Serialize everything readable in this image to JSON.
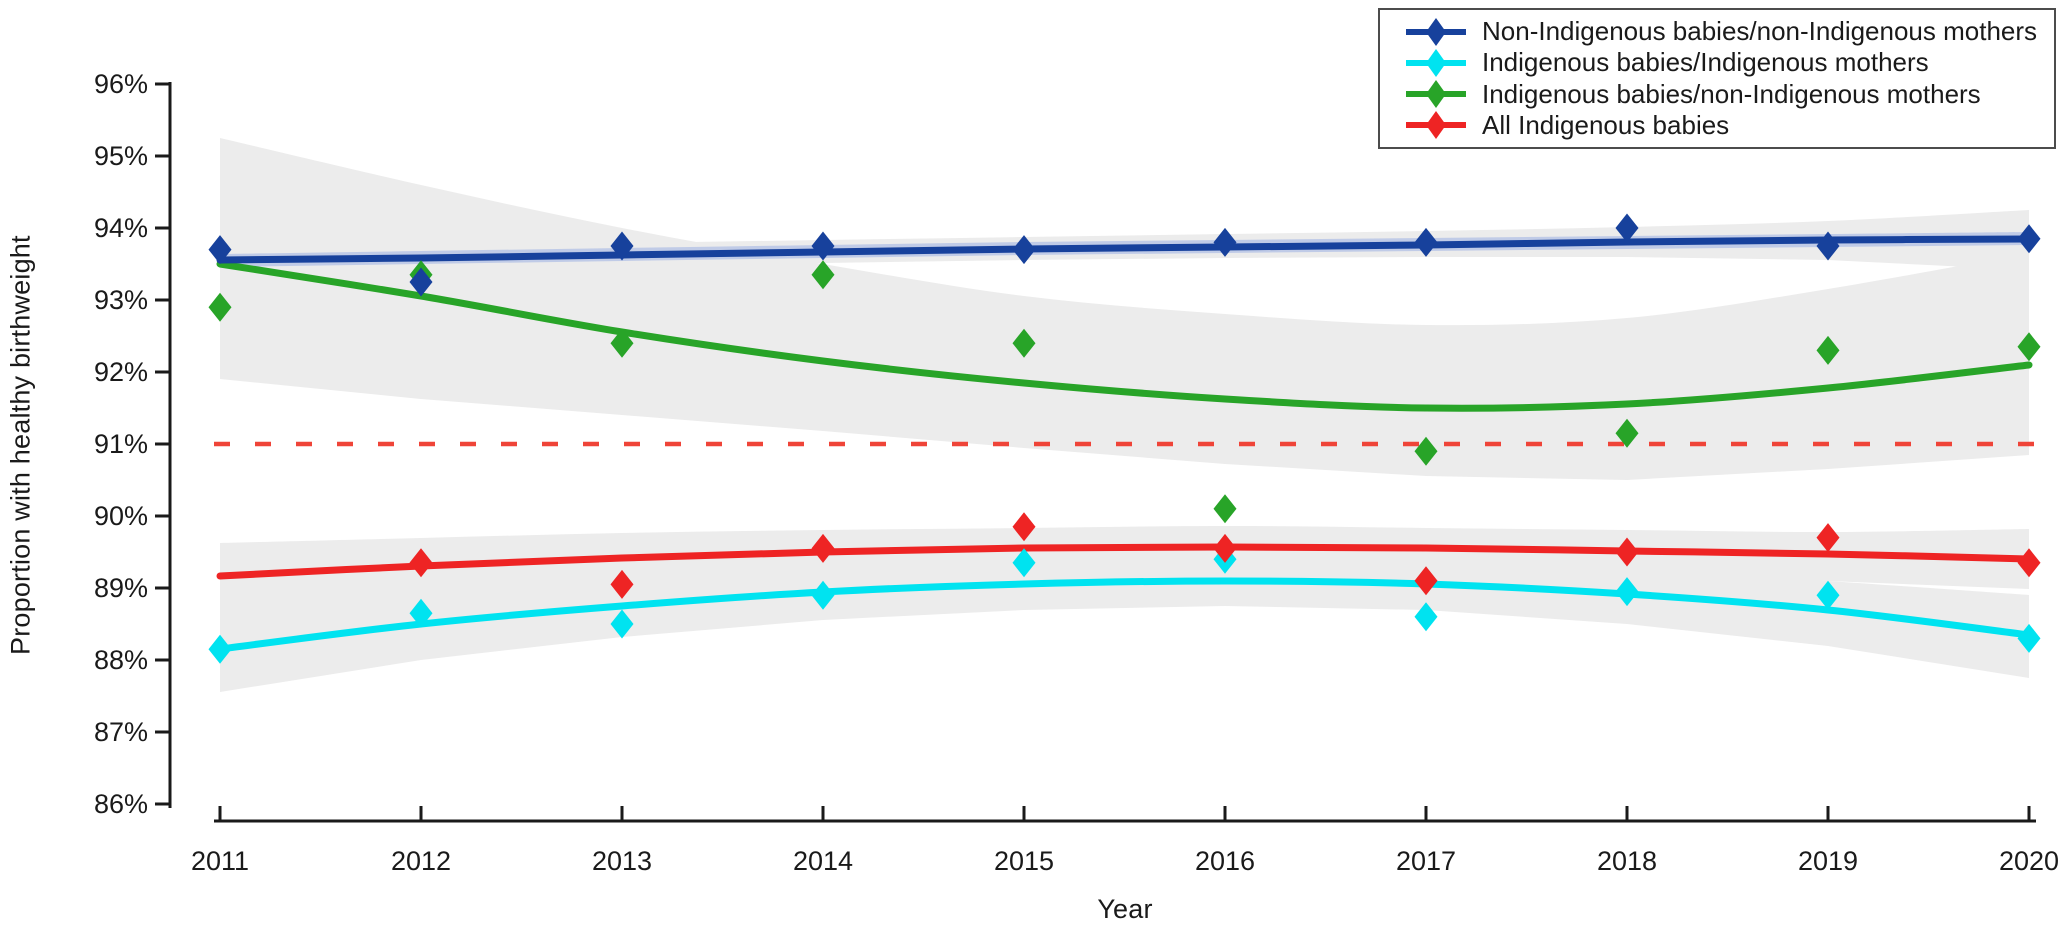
{
  "chart_data": {
    "type": "line",
    "title": "",
    "xlabel": "Year",
    "ylabel": "Proportion with healthy birthweight",
    "x": [
      2011,
      2012,
      2013,
      2014,
      2015,
      2016,
      2017,
      2018,
      2019,
      2020
    ],
    "ylim": [
      86,
      96
    ],
    "ytick_labels": [
      "96%",
      "95%",
      "94%",
      "93%",
      "92%",
      "91%",
      "90%",
      "89%",
      "88%",
      "87%",
      "86%"
    ],
    "ytick_values": [
      96,
      95,
      94,
      93,
      92,
      91,
      90,
      89,
      88,
      87,
      86
    ],
    "grid": false,
    "legend_position": "top-right",
    "reference_line": {
      "value": 91,
      "style": "dashed",
      "color": "#ef4438"
    },
    "band_color": "#ececec",
    "series": [
      {
        "name": "Non-Indigenous babies/non-Indigenous mothers",
        "color": "#17419c",
        "halo_color": "#b9c6e6",
        "points": [
          93.7,
          93.25,
          93.75,
          93.75,
          93.7,
          93.8,
          93.8,
          94.0,
          93.75,
          93.85
        ],
        "trend": [
          93.55,
          93.59,
          93.63,
          93.67,
          93.71,
          93.74,
          93.77,
          93.8,
          93.83,
          93.85
        ],
        "band_upper": [
          93.75,
          93.76,
          93.79,
          93.83,
          93.87,
          93.91,
          93.96,
          94.02,
          94.1,
          94.25
        ],
        "band_lower": [
          93.33,
          93.41,
          93.47,
          93.52,
          93.56,
          93.59,
          93.6,
          93.6,
          93.55,
          93.42
        ]
      },
      {
        "name": "Indigenous babies/Indigenous mothers",
        "color": "#00e3f0",
        "points": [
          88.15,
          88.65,
          88.5,
          88.9,
          89.35,
          89.4,
          88.6,
          88.95,
          88.9,
          88.3
        ],
        "trend": [
          88.15,
          88.5,
          88.75,
          88.95,
          89.05,
          89.1,
          89.05,
          88.92,
          88.7,
          88.35
        ],
        "band_upper": [
          88.75,
          88.95,
          89.12,
          89.25,
          89.35,
          89.4,
          89.35,
          89.28,
          89.1,
          88.9
        ],
        "band_lower": [
          87.55,
          88.0,
          88.32,
          88.55,
          88.7,
          88.75,
          88.7,
          88.5,
          88.2,
          87.75
        ]
      },
      {
        "name": "Indigenous babies/non-Indigenous mothers",
        "color": "#28a428",
        "points": [
          92.9,
          93.35,
          92.4,
          93.35,
          92.4,
          90.1,
          90.9,
          91.15,
          92.3,
          92.35
        ],
        "trend": [
          93.5,
          93.05,
          92.55,
          92.15,
          91.85,
          91.62,
          91.5,
          91.55,
          91.78,
          92.1
        ],
        "band_upper": [
          95.25,
          94.6,
          94.0,
          93.5,
          93.05,
          92.8,
          92.65,
          92.75,
          93.15,
          93.65
        ],
        "band_lower": [
          91.9,
          91.62,
          91.4,
          91.18,
          90.95,
          90.72,
          90.55,
          90.5,
          90.65,
          90.85
        ]
      },
      {
        "name": "All Indigenous babies",
        "color": "#ee2424",
        "points": [
          null,
          89.35,
          89.05,
          89.55,
          89.85,
          89.55,
          89.1,
          89.5,
          89.7,
          89.35
        ],
        "trend": [
          89.17,
          89.3,
          89.42,
          89.5,
          89.55,
          89.57,
          89.55,
          89.52,
          89.47,
          89.4
        ],
        "band_upper": [
          89.62,
          89.7,
          89.76,
          89.81,
          89.84,
          89.86,
          89.84,
          89.8,
          89.78,
          89.82
        ],
        "band_lower": [
          88.7,
          88.92,
          89.07,
          89.18,
          89.26,
          89.3,
          89.27,
          89.2,
          89.1,
          88.98
        ]
      }
    ]
  },
  "labels": {
    "xlabel": "Year",
    "ylabel": "Proportion with healthy birthweight"
  }
}
